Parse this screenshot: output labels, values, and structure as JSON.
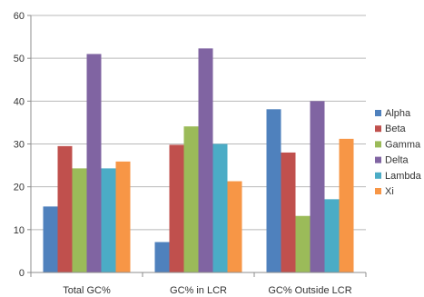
{
  "chart_data": {
    "type": "bar",
    "categories": [
      "Total GC%",
      "GC% in LCR",
      "GC% Outside LCR"
    ],
    "series": [
      {
        "name": "Alpha",
        "color": "#4f81bd",
        "values": [
          15.4,
          7.1,
          38.1
        ]
      },
      {
        "name": "Beta",
        "color": "#c0504d",
        "values": [
          29.5,
          29.8,
          28.0
        ]
      },
      {
        "name": "Gamma",
        "color": "#9bbb59",
        "values": [
          24.3,
          34.1,
          13.2
        ]
      },
      {
        "name": "Delta",
        "color": "#8064a2",
        "values": [
          51.0,
          52.3,
          40.0
        ]
      },
      {
        "name": "Lambda",
        "color": "#4bacc6",
        "values": [
          24.3,
          30.0,
          17.1
        ]
      },
      {
        "name": "Xi",
        "color": "#f79646",
        "values": [
          25.9,
          21.3,
          31.2
        ]
      }
    ],
    "ylim": [
      0,
      60
    ],
    "yticks": [
      0,
      10,
      20,
      30,
      40,
      50,
      60
    ],
    "grid": true,
    "legend": "right",
    "title": "",
    "xlabel": "",
    "ylabel": ""
  }
}
